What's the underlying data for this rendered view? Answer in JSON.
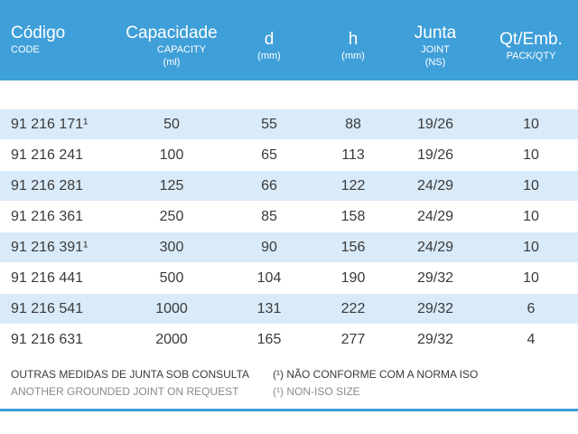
{
  "header": {
    "code": {
      "main": "Código",
      "sub": "CODE"
    },
    "capacity": {
      "main": "Capacidade",
      "sub1": "CAPACITY",
      "sub2": "(ml)"
    },
    "d": {
      "main": "d",
      "sub": "(mm)"
    },
    "h": {
      "main": "h",
      "sub": "(mm)"
    },
    "joint": {
      "main": "Junta",
      "sub1": "JOINT",
      "sub2": "(NS)"
    },
    "pack": {
      "main": "Qt/Emb.",
      "sub": "PACK/QTY"
    }
  },
  "rows": [
    {
      "code": "91 216 171¹",
      "capacity": "50",
      "d": "55",
      "h": "88",
      "joint": "19/26",
      "qty": "10"
    },
    {
      "code": "91 216 241",
      "capacity": "100",
      "d": "65",
      "h": "113",
      "joint": "19/26",
      "qty": "10"
    },
    {
      "code": "91 216 281",
      "capacity": "125",
      "d": "66",
      "h": "122",
      "joint": "24/29",
      "qty": "10"
    },
    {
      "code": "91 216 361",
      "capacity": "250",
      "d": "85",
      "h": "158",
      "joint": "24/29",
      "qty": "10"
    },
    {
      "code": "91 216 391¹",
      "capacity": "300",
      "d": "90",
      "h": "156",
      "joint": "24/29",
      "qty": "10"
    },
    {
      "code": "91 216 441",
      "capacity": "500",
      "d": "104",
      "h": "190",
      "joint": "29/32",
      "qty": "10"
    },
    {
      "code": "91 216 541",
      "capacity": "1000",
      "d": "131",
      "h": "222",
      "joint": "29/32",
      "qty": "6"
    },
    {
      "code": "91 216 631",
      "capacity": "2000",
      "d": "165",
      "h": "277",
      "joint": "29/32",
      "qty": "4"
    }
  ],
  "notes": {
    "left_pt": "OUTRAS MEDIDAS DE JUNTA SOB CONSULTA",
    "left_en": "ANOTHER GROUNDED JOINT ON REQUEST",
    "right_pt": "(¹) NÃO CONFORME COM A NORMA ISO",
    "right_en": "(¹) NON-ISO SIZE"
  },
  "colors": {
    "header_bg": "#3f9fd8",
    "stripe": "#d9eaf8"
  }
}
